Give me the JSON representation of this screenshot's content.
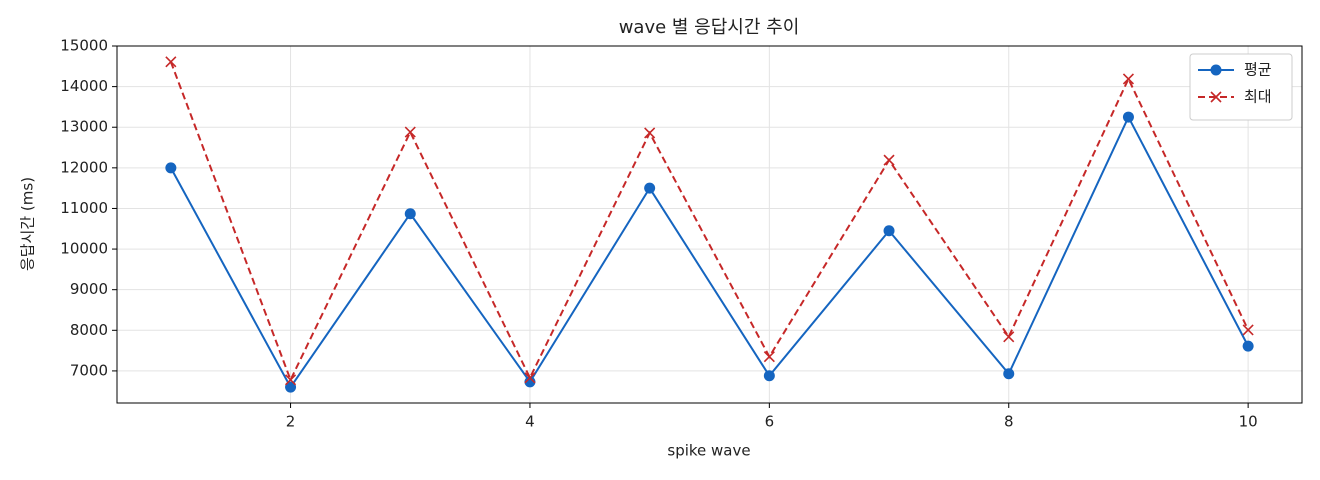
{
  "chart_data": {
    "type": "line",
    "title": "wave 별 응답시간 추이",
    "x_label": "spike wave",
    "y_label": "응답시간 (ms)",
    "x": [
      1,
      2,
      3,
      4,
      5,
      6,
      7,
      8,
      9,
      10
    ],
    "series": [
      {
        "name": "평균",
        "color": "#1565c0",
        "marker": "o",
        "linestyle": "solid",
        "values": [
          12000,
          6600,
          10870,
          6730,
          11500,
          6880,
          10450,
          6930,
          13250,
          7610
        ]
      },
      {
        "name": "최대",
        "color": "#c62828",
        "marker": "x",
        "linestyle": "dashed",
        "values": [
          14610,
          6780,
          12880,
          6830,
          12860,
          7350,
          12190,
          7840,
          14190,
          8010
        ]
      }
    ],
    "xlim": [
      0.55,
      10.45
    ],
    "ylim": [
      6210,
      15000
    ],
    "xticks": [
      2,
      4,
      6,
      8,
      10
    ],
    "yticks": [
      7000,
      8000,
      9000,
      10000,
      11000,
      12000,
      13000,
      14000,
      15000
    ],
    "grid": true,
    "legend": "upper right"
  }
}
